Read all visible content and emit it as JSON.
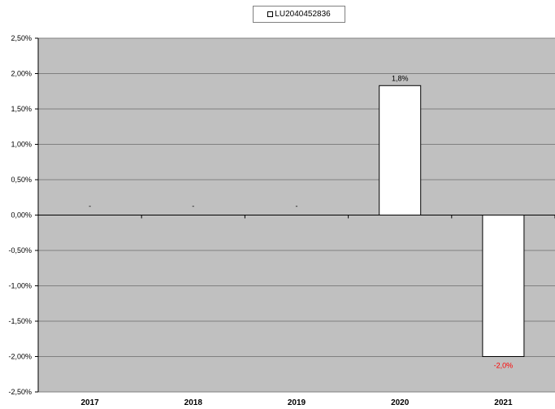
{
  "chart_data": {
    "type": "bar",
    "title": "",
    "xlabel": "",
    "ylabel": "",
    "categories": [
      "2017",
      "2018",
      "2019",
      "2020",
      "2021"
    ],
    "series": [
      {
        "name": "LU2040452836",
        "values": [
          null,
          null,
          null,
          1.83,
          -2.0
        ],
        "data_labels": [
          "-",
          "-",
          "-",
          "1,8%",
          "-2,0%"
        ],
        "fill": "#ffffff",
        "stroke": "#000000"
      }
    ],
    "ylim": [
      -2.5,
      2.5
    ],
    "yticks": [
      2.5,
      2.0,
      1.5,
      1.0,
      0.5,
      0.0,
      -0.5,
      -1.0,
      -1.5,
      -2.0,
      -2.5
    ],
    "ytick_labels": [
      "2,50%",
      "2,00%",
      "1,50%",
      "1,00%",
      "0,50%",
      "0,00%",
      "-0,50%",
      "-1,00%",
      "-1,50%",
      "-2,00%",
      "-2,50%"
    ],
    "grid": true,
    "legend_position": "top-center",
    "plot_background": "#c0c0c0",
    "negative_label_color": "#ff0000"
  }
}
